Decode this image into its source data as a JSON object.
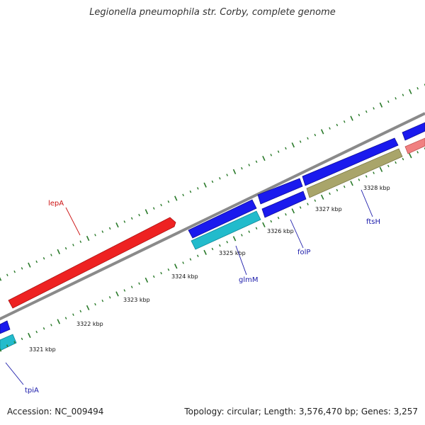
{
  "title": "Legionella pneumophila str. Corby, complete genome",
  "footer": {
    "accession": "Accession: NC_009494",
    "summary": "Topology: circular; Length: 3,576,470 bp; Genes: 3,257"
  },
  "scale_labels": [
    "3321 kbp",
    "3322 kbp",
    "3323 kbp",
    "3324 kbp",
    "3325 kbp",
    "3326 kbp",
    "3327 kbp",
    "3328 kbp"
  ],
  "genes": [
    {
      "name": "lepA",
      "color": "#ee2222"
    },
    {
      "name": "glmM",
      "color": "#22bbcc"
    },
    {
      "name": "folP",
      "color": "#1a1aee"
    },
    {
      "name": "ftsH",
      "color": "#a9a56a"
    },
    {
      "name": "tpiA",
      "color": "#22bbcc"
    }
  ],
  "colors": {
    "backbone": "#8a8a8a",
    "tick_marks": "#2a7a2a",
    "gene_blue": "#1a1aee",
    "gene_red": "#ee2222",
    "gene_cyan": "#22bbcc",
    "gene_olive": "#a9a56a",
    "gene_pink": "#f08080",
    "label_blue": "#1a1aaa",
    "label_red": "#cc1111"
  }
}
